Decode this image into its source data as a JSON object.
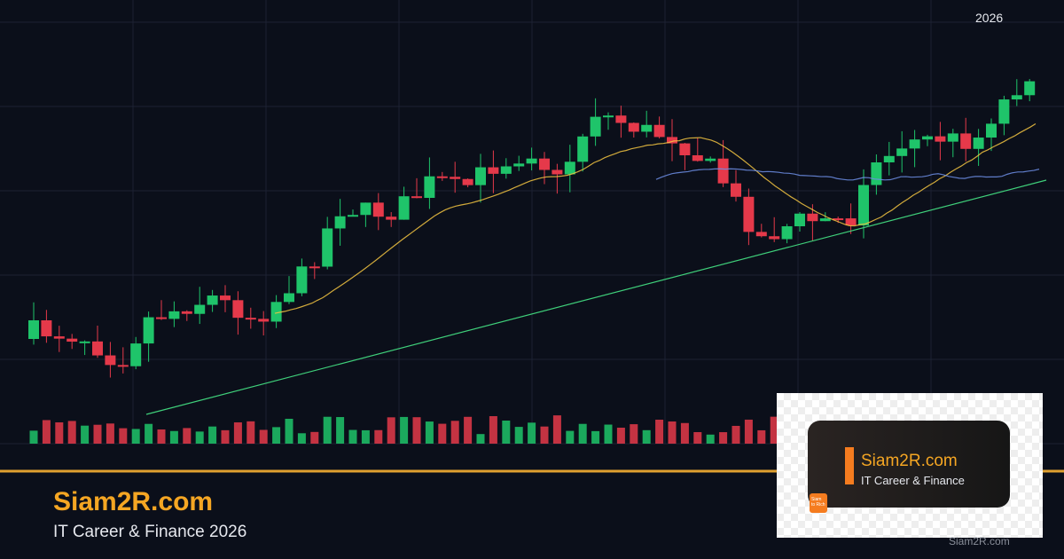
{
  "header": {
    "year": "2026"
  },
  "brand": {
    "title": "Siam2R.com",
    "subtitle": "IT Career & Finance 2026"
  },
  "card": {
    "title": "Siam2R.com",
    "subtitle": "IT Career & Finance",
    "icon_label": [
      "Siam",
      "to Rich"
    ]
  },
  "watermark": "Siam2R.com"
}
